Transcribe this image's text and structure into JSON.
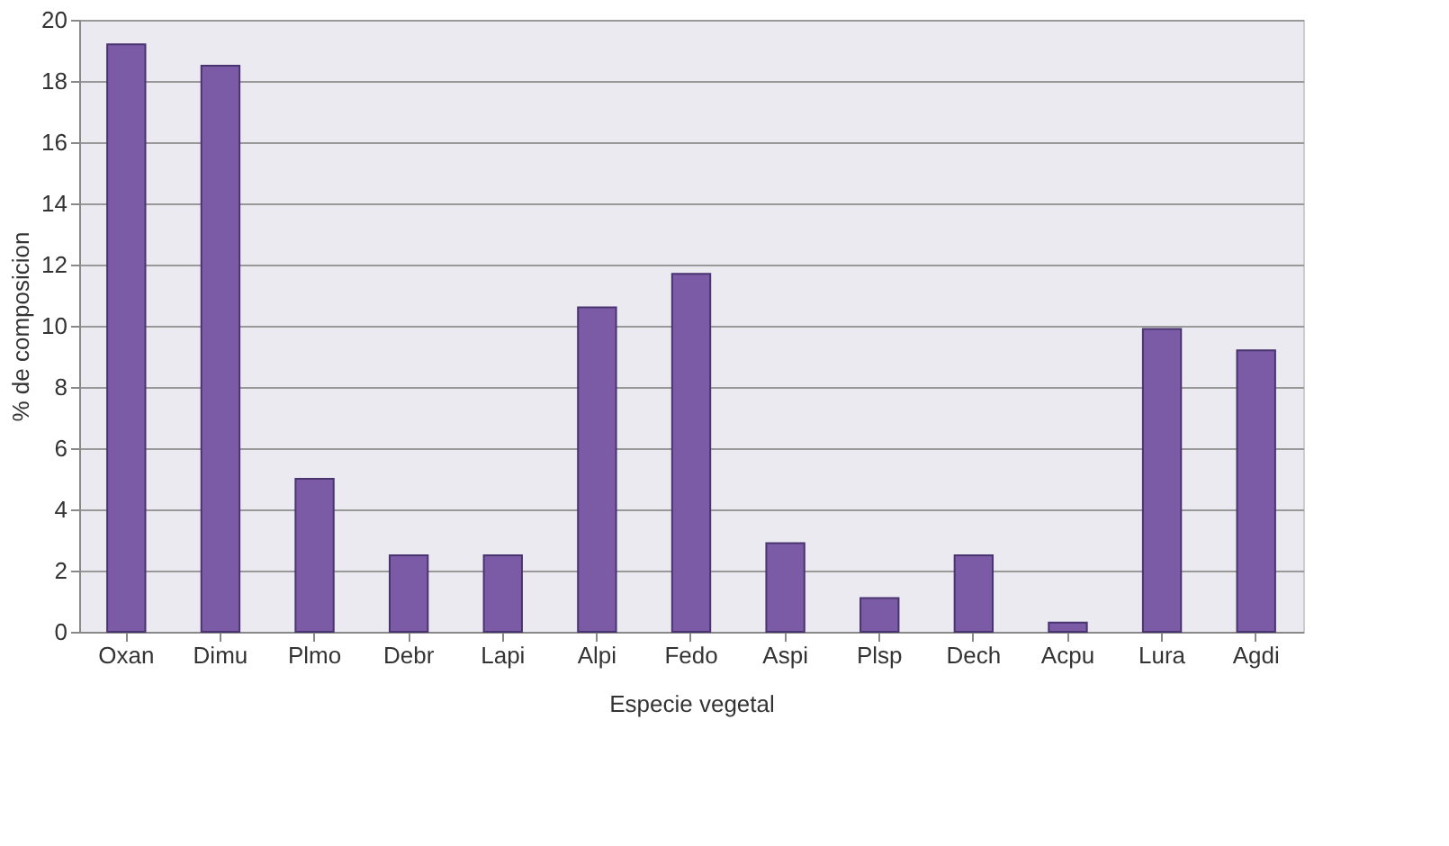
{
  "chart_data": {
    "type": "bar",
    "xlabel": "Especie vegetal",
    "ylabel": "% de composicion",
    "categories": [
      "Oxan",
      "Dimu",
      "Plmo",
      "Debr",
      "Lapi",
      "Alpi",
      "Fedo",
      "Aspi",
      "Plsp",
      "Dech",
      "Acpu",
      "Lura",
      "Agdi"
    ],
    "values": [
      19.2,
      18.5,
      5.0,
      2.5,
      2.5,
      10.6,
      11.7,
      2.9,
      1.1,
      2.5,
      0.3,
      9.9,
      9.2
    ],
    "color": "#7b5aa6",
    "ylim": [
      0,
      20
    ],
    "yticks": [
      0,
      2,
      4,
      6,
      8,
      10,
      12,
      14,
      16,
      18,
      20
    ],
    "grid": "y"
  }
}
